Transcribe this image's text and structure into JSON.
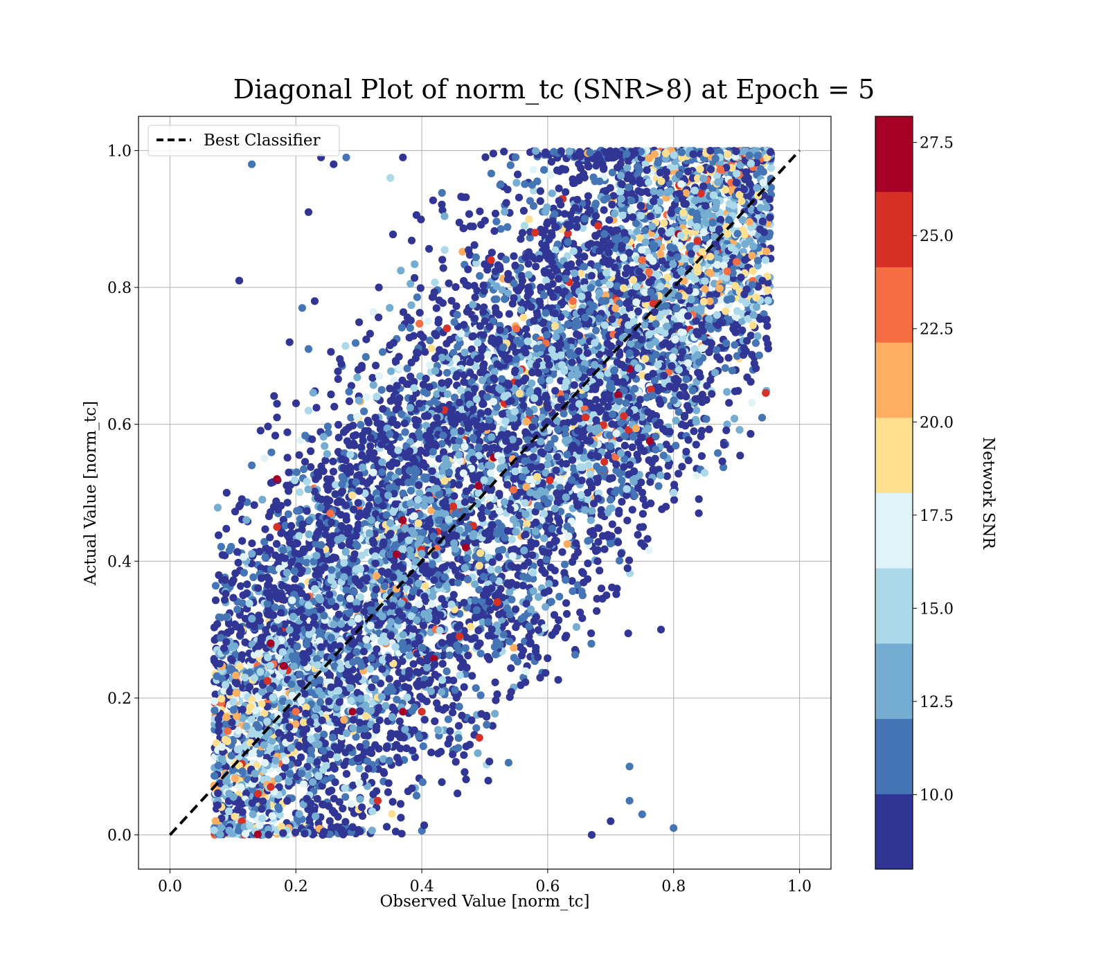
{
  "chart_data": {
    "type": "scatter",
    "title": "Diagonal Plot of norm_tc (SNR>8) at Epoch = 5",
    "xlabel": "Observed Value [norm_tc]",
    "ylabel": "Actual Value [norm_tc]",
    "xlim": [
      -0.05,
      1.05
    ],
    "ylim": [
      -0.05,
      1.05
    ],
    "xticks": [
      0.0,
      0.2,
      0.4,
      0.6,
      0.8,
      1.0
    ],
    "yticks": [
      0.0,
      0.2,
      0.4,
      0.6,
      0.8,
      1.0
    ],
    "xtick_labels": [
      "0.0",
      "0.2",
      "0.4",
      "0.6",
      "0.8",
      "1.0"
    ],
    "ytick_labels": [
      "0.0",
      "0.2",
      "0.4",
      "0.6",
      "0.8",
      "1.0"
    ],
    "grid": true,
    "reference_line": {
      "name": "Best Classifier",
      "x": [
        0.0,
        1.0
      ],
      "y": [
        0.0,
        1.0
      ],
      "style": "dashed",
      "color": "#000000"
    },
    "legend": {
      "position": "top-left",
      "entries": [
        "Best Classifier"
      ]
    },
    "colorbar": {
      "label": "Network SNR",
      "min": 8.0,
      "max": 28.2,
      "ticks": [
        10.0,
        12.5,
        15.0,
        17.5,
        20.0,
        22.5,
        25.0,
        27.5
      ],
      "tick_labels": [
        "10.0",
        "12.5",
        "15.0",
        "17.5",
        "20.0",
        "22.5",
        "25.0",
        "27.5"
      ],
      "colors": [
        "#313695",
        "#4575b4",
        "#74add1",
        "#abd9e9",
        "#e0f3f8",
        "#fee090",
        "#fdae61",
        "#f46d43",
        "#d73027",
        "#a50026"
      ]
    },
    "points": [
      [
        0.13,
        0.98,
        11.8
      ],
      [
        0.11,
        0.81,
        9.0
      ],
      [
        0.24,
        0.99,
        9.0
      ],
      [
        0.26,
        0.98,
        9.0
      ],
      [
        0.28,
        0.99,
        11.8
      ],
      [
        0.37,
        0.99,
        9.0
      ],
      [
        0.35,
        0.96,
        14.5
      ],
      [
        0.19,
        0.72,
        9.0
      ],
      [
        0.21,
        0.77,
        11.8
      ],
      [
        0.22,
        0.71,
        11.8
      ],
      [
        0.23,
        0.78,
        9.0
      ],
      [
        0.22,
        0.91,
        9.0
      ],
      [
        0.17,
        0.63,
        9.0
      ],
      [
        0.17,
        0.61,
        9.0
      ],
      [
        0.22,
        0.62,
        14.5
      ],
      [
        0.13,
        0.54,
        11.8
      ],
      [
        0.15,
        0.55,
        16.5
      ],
      [
        0.09,
        0.5,
        9.0
      ],
      [
        0.11,
        0.48,
        9.0
      ],
      [
        0.17,
        0.52,
        27.6
      ],
      [
        0.19,
        0.51,
        9.0
      ],
      [
        0.17,
        0.45,
        25.5
      ],
      [
        0.16,
        0.28,
        27.6
      ],
      [
        0.14,
        0.06,
        25.5
      ],
      [
        0.16,
        0.07,
        25.5
      ],
      [
        0.2,
        0.18,
        23.0
      ],
      [
        0.29,
        0.18,
        27.6
      ],
      [
        0.37,
        0.18,
        27.6
      ],
      [
        0.4,
        0.18,
        25.5
      ],
      [
        0.33,
        0.05,
        25.5
      ],
      [
        0.36,
        0.41,
        27.6
      ],
      [
        0.37,
        0.46,
        27.6
      ],
      [
        0.49,
        0.51,
        27.6
      ],
      [
        0.45,
        0.48,
        25.5
      ],
      [
        0.44,
        0.74,
        25.5
      ],
      [
        0.51,
        0.84,
        25.5
      ],
      [
        0.58,
        0.88,
        25.5
      ],
      [
        0.64,
        0.78,
        23.0
      ],
      [
        0.66,
        0.61,
        25.5
      ],
      [
        0.47,
        0.42,
        27.6
      ],
      [
        0.52,
        0.34,
        25.5
      ],
      [
        0.46,
        0.29,
        25.5
      ],
      [
        0.68,
        0.89,
        25.5
      ],
      [
        0.75,
        0.84,
        23.0
      ],
      [
        0.78,
        0.3,
        9.0
      ],
      [
        0.8,
        0.01,
        11.8
      ],
      [
        0.73,
        0.05,
        11.8
      ],
      [
        0.75,
        0.03,
        11.8
      ],
      [
        0.73,
        0.1,
        11.8
      ],
      [
        0.7,
        0.02,
        9.0
      ],
      [
        0.67,
        0.0,
        9.0
      ],
      [
        0.71,
        0.36,
        9.0
      ],
      [
        0.84,
        0.47,
        9.0
      ],
      [
        0.82,
        0.56,
        9.0
      ],
      [
        0.8,
        0.5,
        14.5
      ],
      [
        0.88,
        0.57,
        9.0
      ]
    ]
  }
}
